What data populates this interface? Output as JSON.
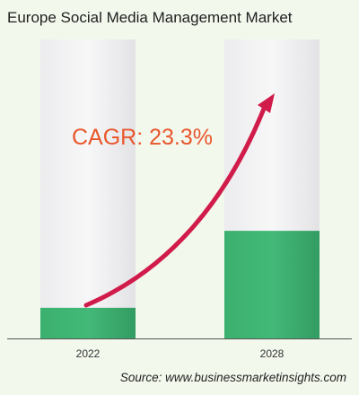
{
  "chart_data": {
    "type": "bar",
    "title": "Europe Social Media Management Market",
    "categories": [
      "2022",
      "2028"
    ],
    "values": [
      1,
      3.51
    ],
    "ylim": [
      0,
      9.75
    ],
    "xlabel": "",
    "ylabel": "",
    "annotation": "CAGR: 23.3%",
    "source": "Source: www.businessmarketinsights.com"
  },
  "colors": {
    "background": "#f3f8ed",
    "bar_fill": "#3aa86b",
    "bar_track": "#e4e3e6",
    "arrow": "#d11b4a",
    "annotation_text": "#e8572c",
    "axis": "#555555"
  }
}
